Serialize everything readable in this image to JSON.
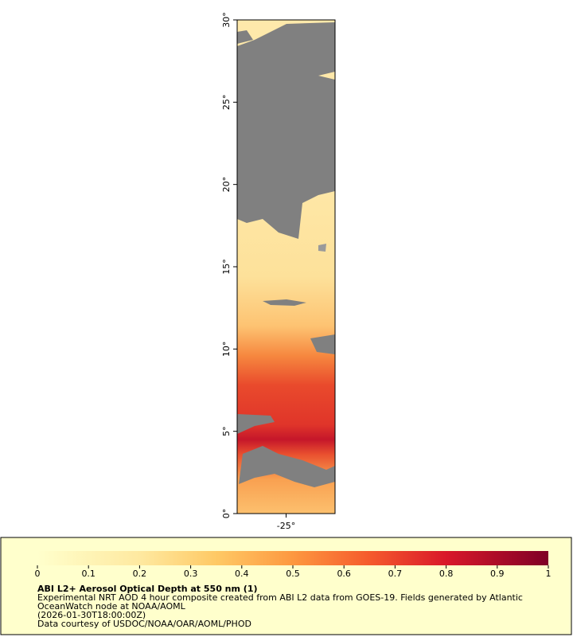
{
  "map": {
    "xlim": [
      -28,
      -22
    ],
    "ylim": [
      0,
      30
    ],
    "xticks": [
      {
        "value": -25,
        "label": "-25°"
      }
    ],
    "yticks": [
      {
        "value": 0,
        "label": "0°"
      },
      {
        "value": 5,
        "label": "5°"
      },
      {
        "value": 10,
        "label": "10°"
      },
      {
        "value": 15,
        "label": "15°"
      },
      {
        "value": 20,
        "label": "20°"
      },
      {
        "value": 25,
        "label": "25°"
      },
      {
        "value": 30,
        "label": "30°"
      }
    ]
  },
  "legend": {
    "title": "ABI L2+ Aerosol Optical Depth at 550 nm (1)",
    "colorbar": {
      "range": [
        0,
        1
      ],
      "ticks": [
        0,
        0.1,
        0.2,
        0.3,
        0.4,
        0.5,
        0.6,
        0.7,
        0.8,
        0.9,
        1
      ]
    },
    "lines": [
      "Experimental NRT AOD 4 hour composite created from ABI L2 data from GOES-19. Fields generated by Atlantic",
      "OceanWatch node at NOAA/AOML",
      "(2026-01-30T18:00:00Z)",
      "Data courtesy of USDOC/NOAA/OAR/AOML/PHOD"
    ]
  }
}
